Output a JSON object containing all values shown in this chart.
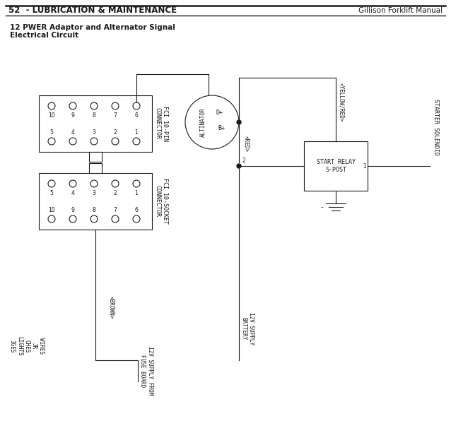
{
  "title_left": "52  - LUBRICATION & MAINTENANCE",
  "title_right": "Gillison Forklift Manual",
  "subtitle1": "12 PWER Adaptor and Alternator Signal",
  "subtitle2": "Electrical Circuit",
  "fg_color": "#1a1a1a",
  "connector1_label": "FCI 10-PIN\nCONNECTOR",
  "connector2_label": "FCI 10-SOCKET\nCONNECTOR",
  "alternator_label": "ALTINATOR",
  "d_plus_label": "D+",
  "b_plus_label": "B+",
  "red_label": "<RED>",
  "yellow_red_label": "<YELLOW/RED>",
  "relay_label": "START RELAY\nS-POST",
  "solenoid_label": "STARTER SOLENOID",
  "brown_label": "<BROWN>",
  "supply1_label": "12V SUPPLY FROM\nFUSE BOARD",
  "supply2_label": "12V SUPPLY\nBATTERY",
  "wires_label": "WIRES\nJR\nCHES\nLIGHTS\nIGES",
  "pin_row1": [
    "10",
    "9",
    "8",
    "7",
    "6"
  ],
  "pin_row2": [
    "5",
    "4",
    "3",
    "2",
    "1"
  ],
  "socket_row1": [
    "5",
    "4",
    "3",
    "2",
    "1"
  ],
  "socket_row2": [
    "10",
    "9",
    "8",
    "7",
    "6"
  ],
  "relay_num2": "2",
  "relay_num1": "1"
}
